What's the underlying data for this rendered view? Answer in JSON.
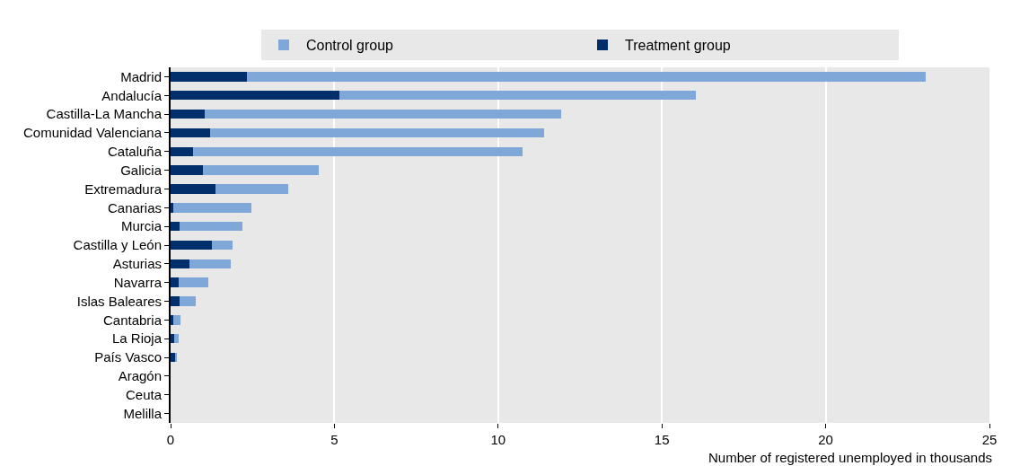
{
  "chart_data": {
    "type": "bar",
    "orientation": "horizontal",
    "stacked": true,
    "xlabel": "Number of registered unemployed in thousands",
    "categories": [
      "Madrid",
      "Andalucía",
      "Castilla-La Mancha",
      "Comunidad Valenciana",
      "Cataluña",
      "Galicia",
      "Extremadura",
      "Canarias",
      "Murcia",
      "Castilla y León",
      "Asturias",
      "Navarra",
      "Islas Baleares",
      "Cantabria",
      "La Rioja",
      "País Vasco",
      "Aragón",
      "Ceuta",
      "Melilla"
    ],
    "series": [
      {
        "name": "Treatment group",
        "color": "#002f6c",
        "values": [
          2.34,
          5.14,
          1.03,
          1.21,
          0.69,
          0.98,
          1.37,
          0.07,
          0.27,
          1.27,
          0.57,
          0.25,
          0.27,
          0.08,
          0.1,
          0.16,
          0,
          0,
          0
        ]
      },
      {
        "name": "Control group",
        "color": "#7fa8d9",
        "values": [
          20.7,
          10.9,
          10.9,
          10.2,
          10.05,
          3.54,
          2.23,
          2.41,
          1.91,
          0.63,
          1.28,
          0.91,
          0.51,
          0.21,
          0.14,
          0.02,
          0,
          0,
          0
        ]
      }
    ],
    "xlim": [
      0,
      25
    ],
    "xticks": [
      0,
      5,
      10,
      15,
      20,
      25
    ],
    "grid": "x",
    "legend": "top"
  }
}
